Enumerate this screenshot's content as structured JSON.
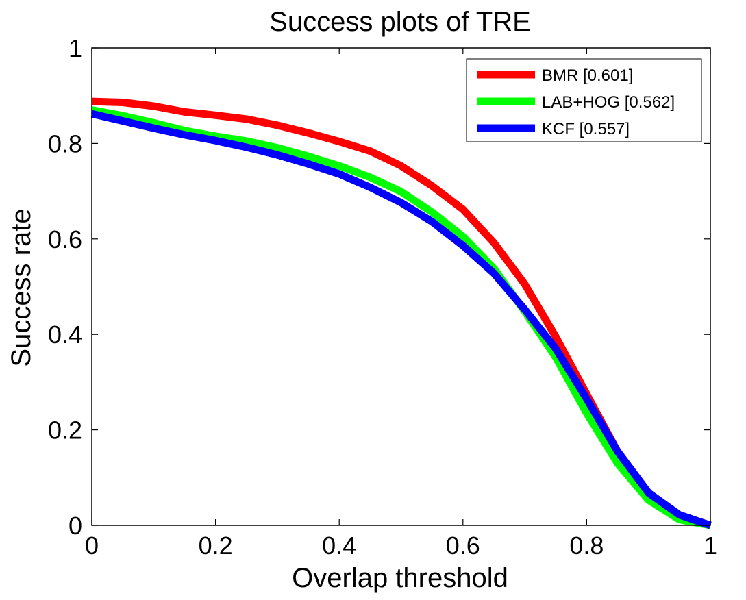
{
  "chart_data": {
    "type": "line",
    "title": "Success plots of TRE",
    "xlabel": "Overlap threshold",
    "ylabel": "Success rate",
    "xlim": [
      0,
      1
    ],
    "ylim": [
      0,
      1
    ],
    "xticks": [
      "0",
      "0.2",
      "0.4",
      "0.6",
      "0.8",
      "1"
    ],
    "yticks": [
      "0",
      "0.2",
      "0.4",
      "0.6",
      "0.8",
      "1"
    ],
    "grid": false,
    "legend_position": "top-right",
    "x": [
      0,
      0.05,
      0.1,
      0.15,
      0.2,
      0.25,
      0.3,
      0.35,
      0.4,
      0.45,
      0.5,
      0.55,
      0.6,
      0.65,
      0.7,
      0.75,
      0.8,
      0.85,
      0.9,
      0.95,
      1.0
    ],
    "series": [
      {
        "name": "BMR [0.601]",
        "color": "#ff0000",
        "values": [
          0.888,
          0.886,
          0.878,
          0.866,
          0.859,
          0.851,
          0.838,
          0.822,
          0.804,
          0.784,
          0.753,
          0.711,
          0.662,
          0.592,
          0.505,
          0.395,
          0.275,
          0.155,
          0.068,
          0.022,
          0.0
        ]
      },
      {
        "name": "LAB+HOG [0.562]",
        "color": "#00ff00",
        "values": [
          0.87,
          0.858,
          0.843,
          0.827,
          0.815,
          0.805,
          0.791,
          0.773,
          0.753,
          0.729,
          0.699,
          0.656,
          0.605,
          0.538,
          0.448,
          0.352,
          0.235,
          0.13,
          0.053,
          0.012,
          0.0
        ]
      },
      {
        "name": "KCF [0.557]",
        "color": "#0000ff",
        "values": [
          0.862,
          0.847,
          0.832,
          0.818,
          0.806,
          0.792,
          0.776,
          0.757,
          0.736,
          0.708,
          0.676,
          0.636,
          0.586,
          0.528,
          0.452,
          0.37,
          0.265,
          0.155,
          0.068,
          0.022,
          0.0
        ]
      }
    ]
  }
}
